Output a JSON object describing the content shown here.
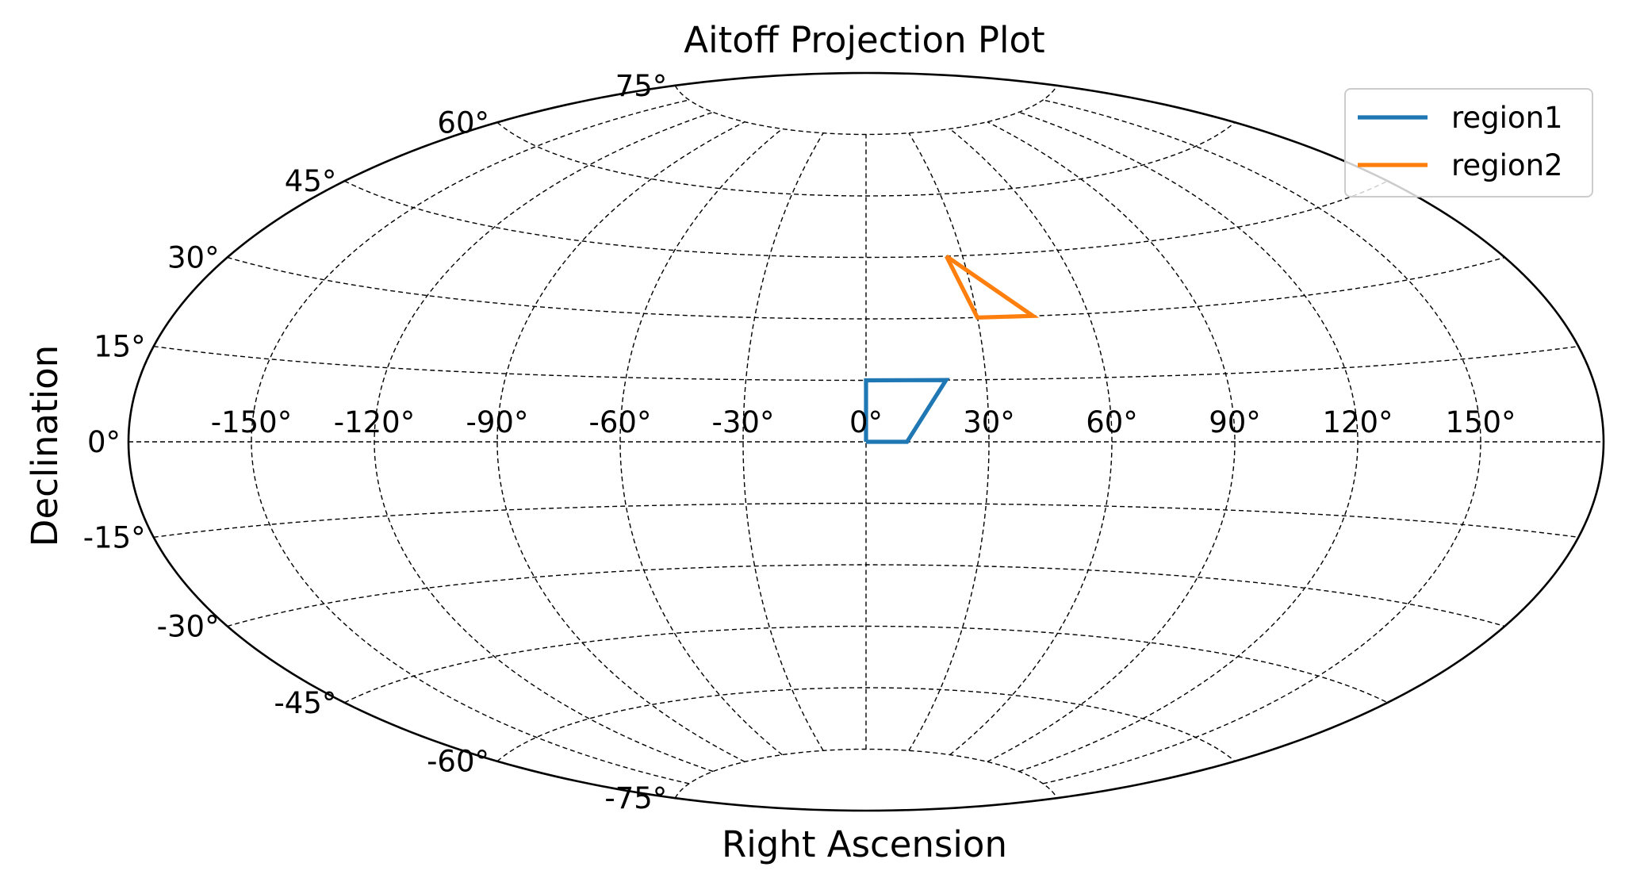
{
  "chart_data": {
    "type": "line",
    "projection": "aitoff",
    "title": "Aitoff Projection Plot",
    "xlabel": "Right Ascension",
    "ylabel": "Declination",
    "xlim": [
      -180,
      180
    ],
    "ylim": [
      -90,
      90
    ],
    "grid": true,
    "legend_position": "top-right",
    "xticks": [
      -150,
      -120,
      -90,
      -60,
      -30,
      0,
      30,
      60,
      90,
      120,
      150
    ],
    "xtick_labels": [
      "-150°",
      "-120°",
      "-90°",
      "-60°",
      "-30°",
      "0°",
      "30°",
      "60°",
      "90°",
      "120°",
      "150°"
    ],
    "yticks": [
      -75,
      -60,
      -45,
      -30,
      -15,
      0,
      15,
      30,
      45,
      60,
      75
    ],
    "ytick_labels": [
      "-75°",
      "-60°",
      "-45°",
      "-30°",
      "-15°",
      "0°",
      "15°",
      "30°",
      "45°",
      "60°",
      "75°"
    ],
    "series": [
      {
        "name": "region1",
        "color": "#1f77b4",
        "points": [
          [
            0,
            0
          ],
          [
            10,
            0
          ],
          [
            20,
            15
          ],
          [
            0,
            15
          ],
          [
            0,
            0
          ]
        ]
      },
      {
        "name": "region2",
        "color": "#ff7f0e",
        "points": [
          [
            25,
            45
          ],
          [
            30,
            30
          ],
          [
            45,
            30
          ],
          [
            25,
            45
          ]
        ]
      }
    ]
  }
}
